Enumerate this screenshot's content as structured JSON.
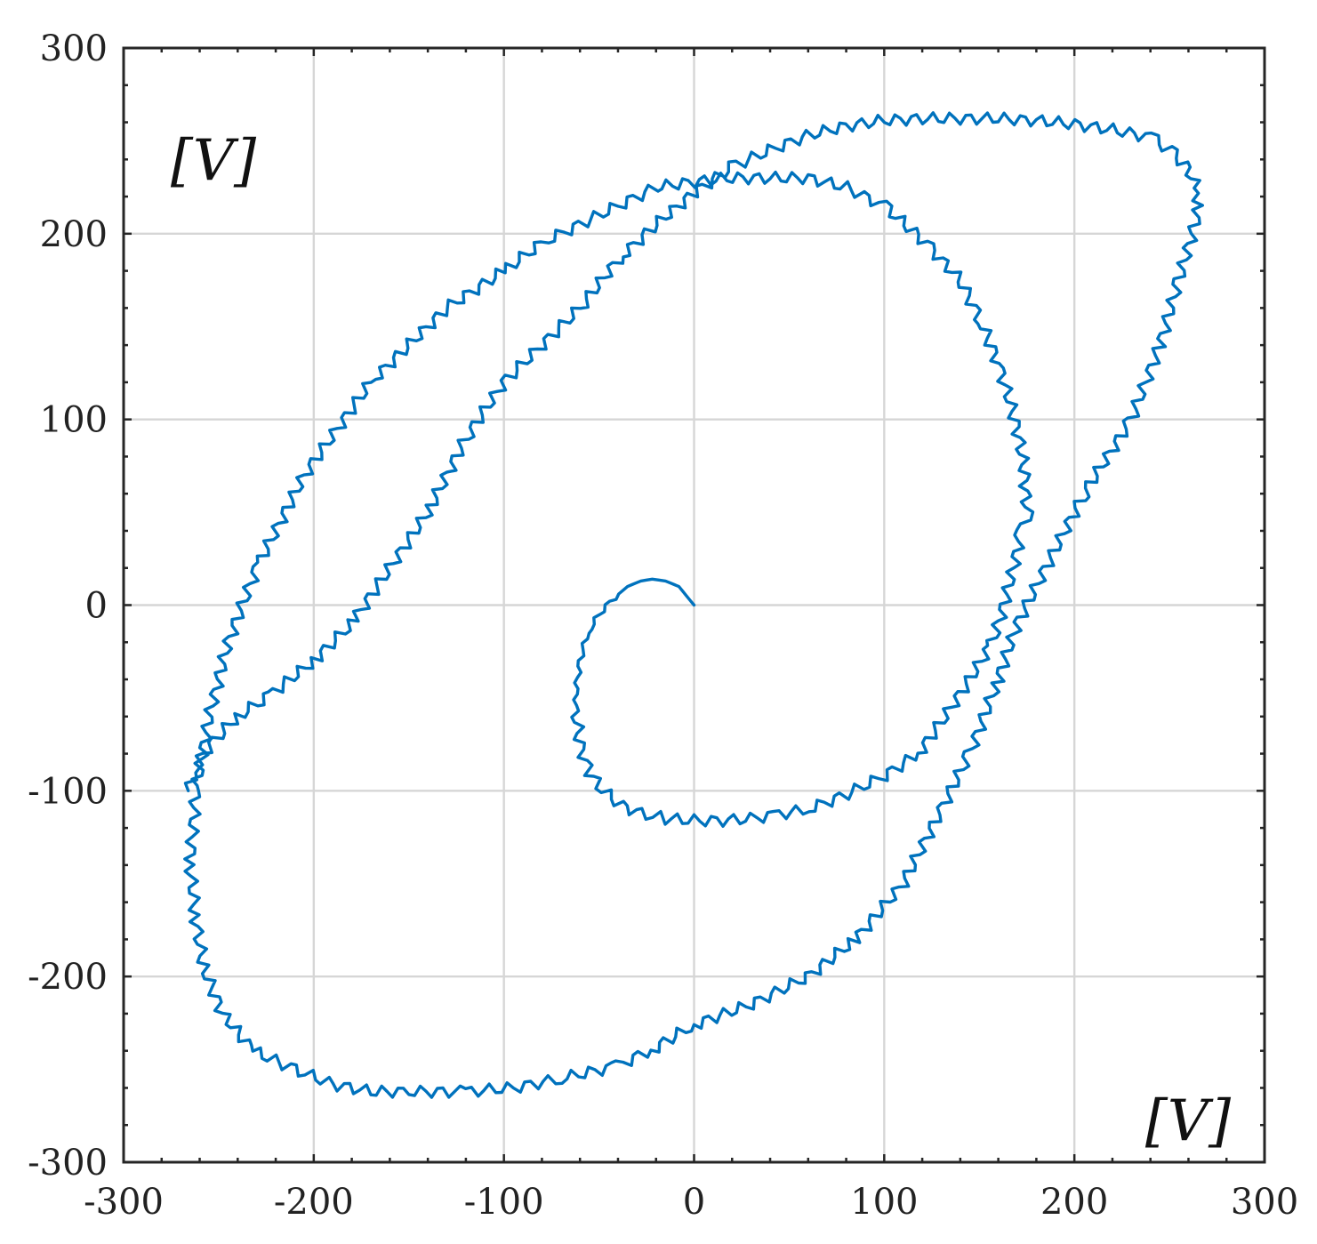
{
  "chart_data": {
    "type": "line",
    "title": "",
    "xlabel": "[V]",
    "ylabel": "[V]",
    "xlim": [
      -300,
      300
    ],
    "ylim": [
      -300,
      300
    ],
    "xticks": [
      "-300",
      "-200",
      "-100",
      "0",
      "100",
      "200",
      "300"
    ],
    "yticks": [
      "300",
      "200",
      "100",
      "0",
      "-100",
      "-200",
      "-300"
    ],
    "grid": true,
    "legend": "none",
    "series_color": "#0072BD",
    "series": [
      {
        "x": [
          0,
          -8,
          -15,
          -22,
          -28,
          -35,
          -42,
          -50,
          -56,
          -60,
          -62,
          -62,
          -60,
          -55,
          -48,
          -38,
          -28,
          -15,
          0,
          15,
          30,
          42,
          60,
          80,
          100,
          118,
          132,
          145,
          157,
          163,
          168,
          172,
          175,
          174,
          171,
          166,
          160,
          150,
          140,
          122,
          100,
          80,
          60,
          40,
          20,
          0,
          -20,
          -40,
          -60,
          -80,
          -100,
          -130,
          -170,
          -205,
          -230,
          -245,
          -255,
          -262,
          -265,
          -262,
          -258,
          -248,
          -232,
          -210,
          -190,
          -170,
          -150,
          -120,
          -95,
          -70,
          -40,
          -20,
          0,
          30,
          60,
          85,
          110,
          130,
          145,
          160,
          170,
          185,
          205,
          230,
          245,
          255,
          262,
          266,
          264,
          260,
          250,
          240,
          220,
          200,
          180,
          160,
          140,
          120,
          100,
          80,
          60,
          40,
          20,
          0,
          -20,
          -40,
          -60,
          -80,
          -100,
          -120,
          -140,
          -160,
          -180,
          -200,
          -225,
          -240,
          -250,
          -258,
          -263,
          -266
        ],
        "y": [
          0,
          10,
          13,
          14,
          13,
          10,
          4,
          -5,
          -15,
          -30,
          -45,
          -60,
          -75,
          -90,
          -100,
          -108,
          -112,
          -115,
          -116,
          -116,
          -115,
          -113,
          -110,
          -102,
          -92,
          -80,
          -60,
          -40,
          -20,
          0,
          20,
          40,
          50,
          70,
          90,
          110,
          130,
          155,
          175,
          195,
          215,
          225,
          230,
          230,
          230,
          228,
          225,
          215,
          205,
          195,
          180,
          160,
          120,
          70,
          20,
          -20,
          -60,
          -100,
          -140,
          -170,
          -195,
          -220,
          -240,
          -250,
          -258,
          -262,
          -262,
          -262,
          -260,
          -255,
          -248,
          -238,
          -226,
          -215,
          -200,
          -180,
          -150,
          -110,
          -80,
          -40,
          -10,
          20,
          60,
          100,
          140,
          175,
          200,
          215,
          225,
          235,
          245,
          252,
          256,
          259,
          261,
          262,
          262,
          262,
          261,
          258,
          253,
          245,
          236,
          222,
          205,
          186,
          160,
          140,
          120,
          90,
          50,
          20,
          -10,
          -30,
          -50,
          -60,
          -70,
          -80,
          -90,
          -100
        ]
      }
    ]
  }
}
